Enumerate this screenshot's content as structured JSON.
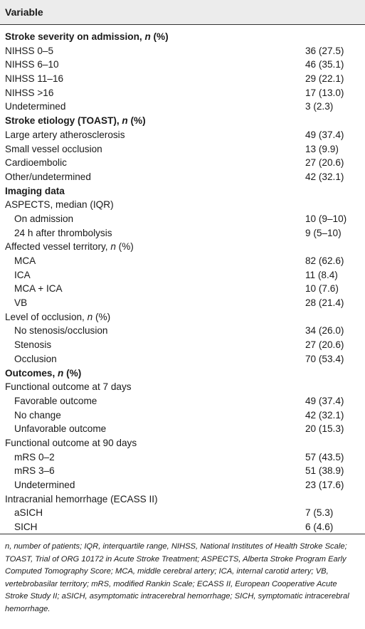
{
  "table": {
    "header": "Variable",
    "rows": [
      {
        "label": "Stroke severity on admission, ",
        "em": "n",
        "suffix": " (%)",
        "value": "",
        "type": "section"
      },
      {
        "label": "NIHSS 0–5",
        "value": "36 (27.5)",
        "type": "item"
      },
      {
        "label": "NIHSS 6–10",
        "value": "46 (35.1)",
        "type": "item"
      },
      {
        "label": "NIHSS 11–16",
        "value": "29 (22.1)",
        "type": "item"
      },
      {
        "label": "NIHSS >16",
        "value": "17 (13.0)",
        "type": "item"
      },
      {
        "label": "Undetermined",
        "value": "3 (2.3)",
        "type": "item"
      },
      {
        "label": "Stroke etiology (TOAST), ",
        "em": "n",
        "suffix": " (%)",
        "value": "",
        "type": "section"
      },
      {
        "label": "Large artery atherosclerosis",
        "value": "49 (37.4)",
        "type": "item"
      },
      {
        "label": "Small vessel occlusion",
        "value": "13 (9.9)",
        "type": "item"
      },
      {
        "label": "Cardioembolic",
        "value": "27 (20.6)",
        "type": "item"
      },
      {
        "label": "Other/undetermined",
        "value": "42 (32.1)",
        "type": "item"
      },
      {
        "label": "Imaging data",
        "value": "",
        "type": "section"
      },
      {
        "label": "ASPECTS, median (IQR)",
        "value": "",
        "type": "item"
      },
      {
        "label": "On admission",
        "value": "10 (9–10)",
        "type": "indent"
      },
      {
        "label": "24 h after thrombolysis",
        "value": "9 (5–10)",
        "type": "indent"
      },
      {
        "label": "Affected vessel territory, ",
        "em": "n",
        "suffix": " (%)",
        "value": "",
        "type": "item"
      },
      {
        "label": "MCA",
        "value": "82 (62.6)",
        "type": "indent"
      },
      {
        "label": "ICA",
        "value": "11 (8.4)",
        "type": "indent"
      },
      {
        "label": "MCA + ICA",
        "value": "10 (7.6)",
        "type": "indent"
      },
      {
        "label": "VB",
        "value": "28 (21.4)",
        "type": "indent"
      },
      {
        "label": "Level of occlusion, ",
        "em": "n",
        "suffix": " (%)",
        "value": "",
        "type": "item"
      },
      {
        "label": "No stenosis/occlusion",
        "value": "34 (26.0)",
        "type": "indent"
      },
      {
        "label": "Stenosis",
        "value": "27 (20.6)",
        "type": "indent"
      },
      {
        "label": "Occlusion",
        "value": "70 (53.4)",
        "type": "indent"
      },
      {
        "label": "Outcomes, ",
        "em": "n",
        "suffix": " (%)",
        "value": "",
        "type": "section"
      },
      {
        "label": "Functional outcome at 7 days",
        "value": "",
        "type": "item"
      },
      {
        "label": "Favorable outcome",
        "value": "49 (37.4)",
        "type": "indent"
      },
      {
        "label": "No change",
        "value": "42 (32.1)",
        "type": "indent"
      },
      {
        "label": "Unfavorable outcome",
        "value": "20 (15.3)",
        "type": "indent"
      },
      {
        "label": "Functional outcome at 90 days",
        "value": "",
        "type": "item"
      },
      {
        "label": "mRS 0–2",
        "value": "57 (43.5)",
        "type": "indent"
      },
      {
        "label": "mRS 3–6",
        "value": "51 (38.9)",
        "type": "indent"
      },
      {
        "label": "Undetermined",
        "value": "23 (17.6)",
        "type": "indent"
      },
      {
        "label": "Intracranial hemorrhage (ECASS II)",
        "value": "",
        "type": "item"
      },
      {
        "label": "aSICH",
        "value": "7 (5.3)",
        "type": "indent"
      },
      {
        "label": "SICH",
        "value": "6 (4.6)",
        "type": "indent"
      }
    ],
    "footnote": "n, number of patients; IQR, interquartile range, NIHSS, National Institutes of Health Stroke Scale; TOAST, Trial of ORG 10172 in Acute Stroke Treatment; ASPECTS, Alberta Stroke Program Early Computed Tomography Score; MCA, middle cerebral artery; ICA, internal carotid artery; VB, vertebrobasilar territory; mRS, modified Rankin Scale; ECASS II, European Cooperative Acute Stroke Study II; aSICH, asymptomatic intracerebral hemorrhage; SICH, symptomatic intracerebral hemorrhage."
  }
}
